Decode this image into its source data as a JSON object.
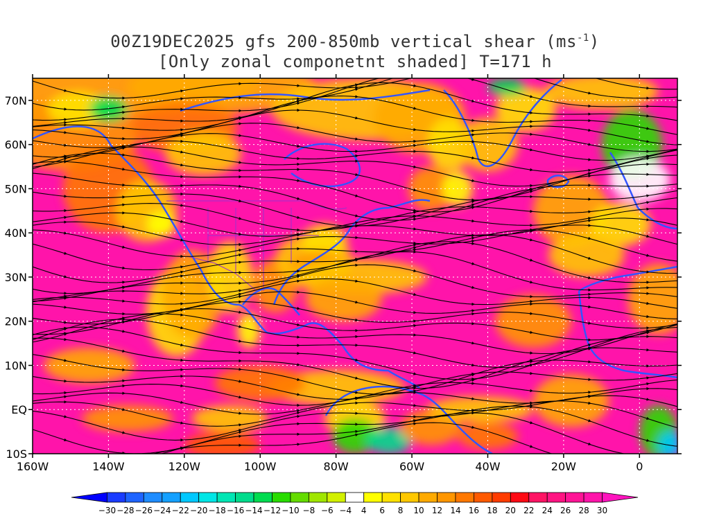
{
  "title": {
    "line1_prefix": "00Z19DEC2025 gfs 200-850mb vertical shear (ms",
    "line1_sup": "-1",
    "line1_suffix": ")",
    "line2": "[Only zonal componetnt shaded] T=171 h"
  },
  "map": {
    "lat_labels": [
      "70N",
      "60N",
      "50N",
      "40N",
      "30N",
      "20N",
      "10N",
      "EQ",
      "10S"
    ],
    "lon_labels": [
      "160W",
      "140W",
      "120W",
      "100W",
      "80W",
      "60W",
      "40W",
      "20W",
      "0"
    ],
    "extent": {
      "lon": [
        -160,
        10
      ],
      "lat": [
        -10,
        75
      ]
    }
  },
  "colorbar": {
    "labels": [
      "-30",
      "-28",
      "-26",
      "-24",
      "-22",
      "-20",
      "-18",
      "-16",
      "-14",
      "-12",
      "-10",
      "-8",
      "-6",
      "-4",
      "4",
      "6",
      "8",
      "10",
      "12",
      "14",
      "16",
      "18",
      "20",
      "22",
      "24",
      "26",
      "28",
      "30"
    ],
    "colors": [
      "#0000ff",
      "#1a3cff",
      "#1e64ff",
      "#1e8cff",
      "#14a0ff",
      "#00c8ff",
      "#00e6e6",
      "#00e6b4",
      "#00dc8c",
      "#00dc50",
      "#28dc00",
      "#64dc00",
      "#a0e600",
      "#d2f000",
      "#ffffff",
      "#ffff00",
      "#ffe100",
      "#ffc800",
      "#ffaa00",
      "#ff9600",
      "#ff7800",
      "#ff5a00",
      "#ff3c00",
      "#ff0a14",
      "#ff1464",
      "#ff1482",
      "#ff1496",
      "#ff14aa",
      "#ff14be"
    ]
  },
  "colors": {
    "coast": "#3355ff",
    "political": "#9932cc",
    "stream": "#000000"
  }
}
